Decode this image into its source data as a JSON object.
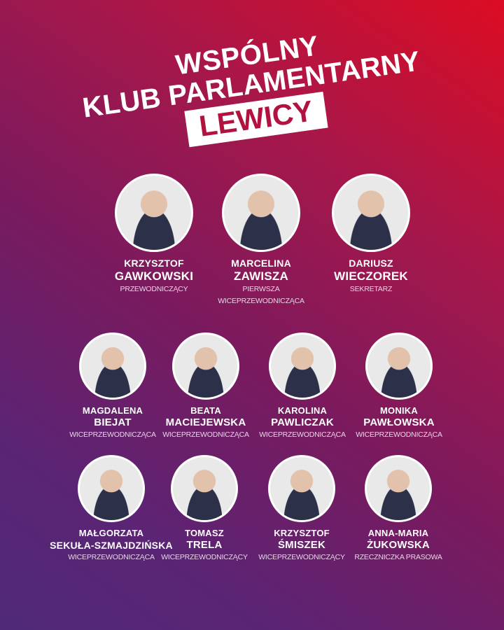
{
  "title": {
    "line1": "WSPÓLNY",
    "line2": "KLUB PARLAMENTARNY",
    "line3": "LEWICY"
  },
  "colors": {
    "gradient_top_right": "#dc0c22",
    "gradient_bottom_left": "#4f2a78",
    "title_box": "#ffffff",
    "title_box_text": "#b3123f"
  },
  "members": [
    {
      "first": "KRZYSZTOF",
      "last": "GAWKOWSKI",
      "role": "PRZEWODNICZĄCY",
      "role2": ""
    },
    {
      "first": "MARCELINA",
      "last": "ZAWISZA",
      "role": "PIERWSZA",
      "role2": "WICEPRZEWODNICZĄCA"
    },
    {
      "first": "DARIUSZ",
      "last": "WIECZOREK",
      "role": "SEKRETARZ",
      "role2": ""
    },
    {
      "first": "MAGDALENA",
      "last": "BIEJAT",
      "role": "WICEPRZEWODNICZĄCA"
    },
    {
      "first": "BEATA",
      "last": "MACIEJEWSKA",
      "role": "WICEPRZEWODNICZĄCA"
    },
    {
      "first": "KAROLINA",
      "last": "PAWLICZAK",
      "role": "WICEPRZEWODNICZĄCA"
    },
    {
      "first": "MONIKA",
      "last": "PAWŁOWSKA",
      "role": "WICEPRZEWODNICZĄCA"
    },
    {
      "first": "MAŁGORZATA",
      "last": "SEKUŁA-SZMAJDZIŃSKA",
      "role": "WICEPRZEWODNICZĄCA"
    },
    {
      "first": "TOMASZ",
      "last": "TRELA",
      "role": "WICEPRZEWODNICZĄCY"
    },
    {
      "first": "KRZYSZTOF",
      "last": "ŚMISZEK",
      "role": "WICEPRZEWODNICZĄCY"
    },
    {
      "first": "ANNA-MARIA",
      "last": "ŻUKOWSKA",
      "role": "RZECZNICZKA PRASOWA"
    }
  ]
}
